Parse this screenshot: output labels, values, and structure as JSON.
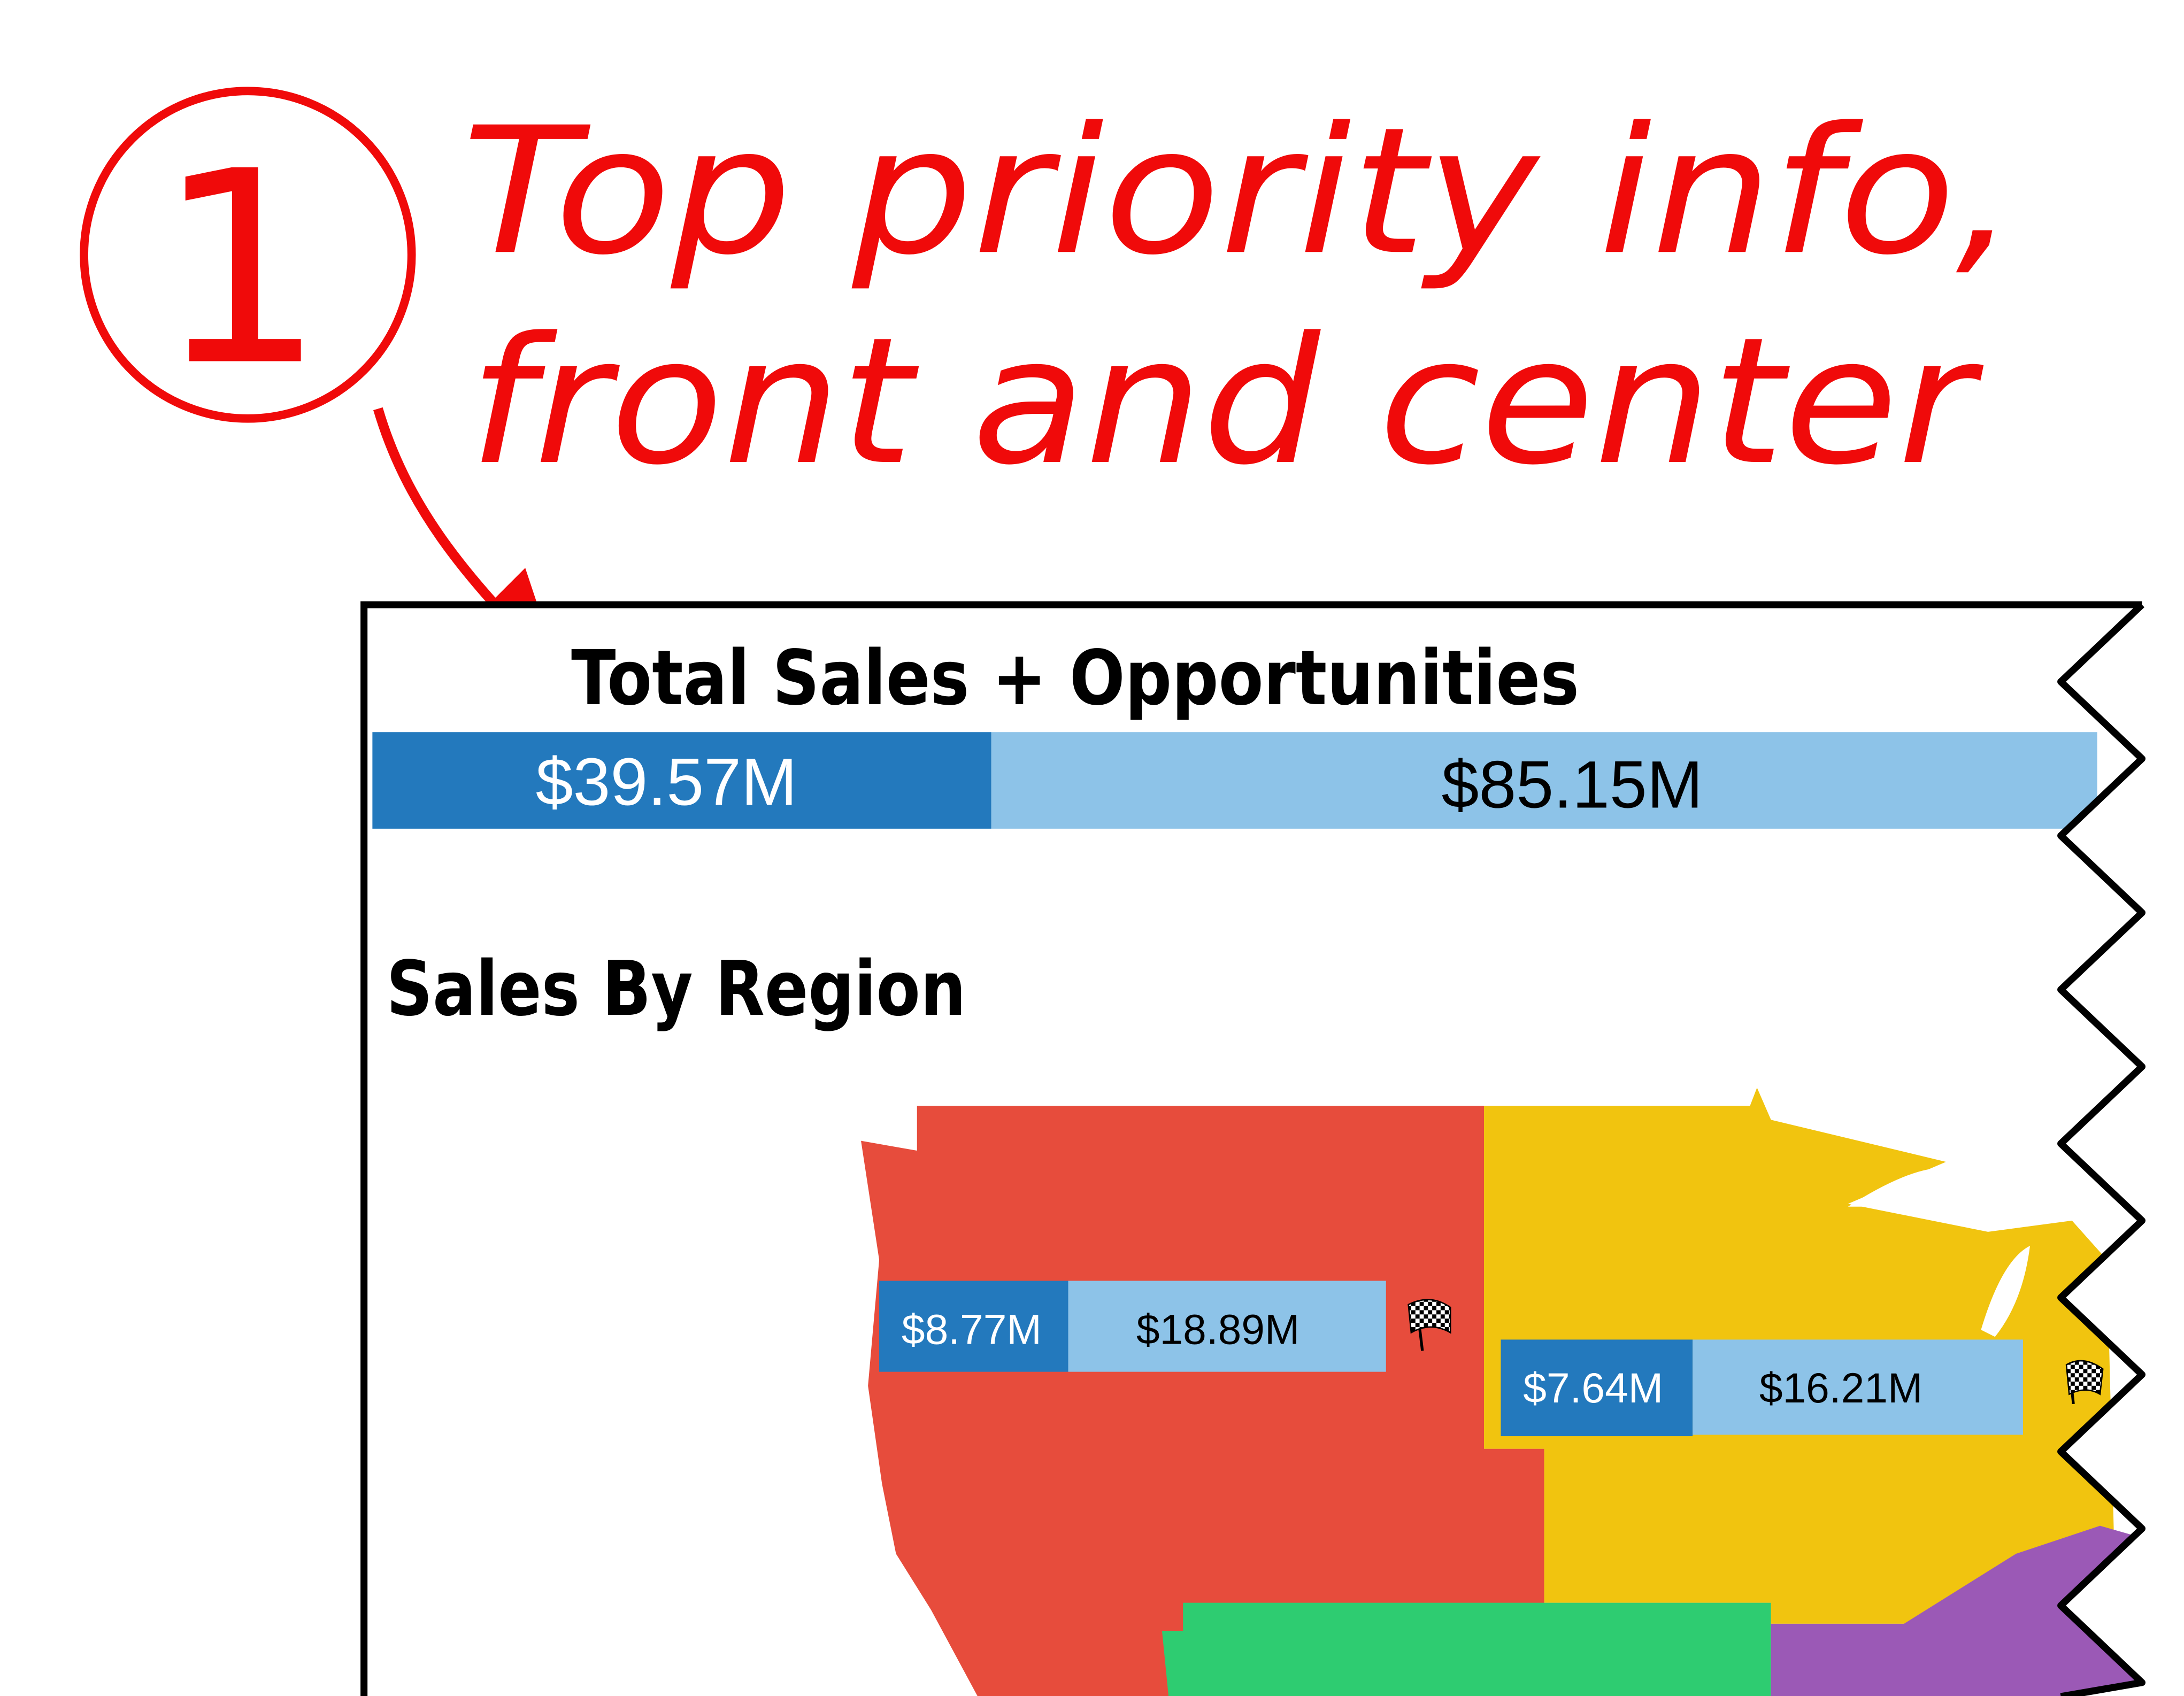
{
  "annotation": {
    "number": "1",
    "line1": "Top priority info,",
    "line2": "front and center",
    "color": "#f00a0a"
  },
  "dashboard": {
    "total": {
      "title": "Total Sales + Opportunities",
      "sales": "$39.57M",
      "opportunities": "$85.15M",
      "sales_color": "#2379bd",
      "opportunities_color": "#8dc3e8"
    },
    "region": {
      "title": "Sales By Region",
      "regions": [
        {
          "color": "#e74c3c",
          "sales": "$8.77M",
          "opportunities": "$18.89M",
          "icon": "checkered-flag-icon"
        },
        {
          "color": "#f1c40f",
          "sales": "$7.64M",
          "opportunities": "$16.21M",
          "icon": "checkered-flag-icon"
        },
        {
          "color": "#2ecc71"
        },
        {
          "color": "#9b59b6"
        }
      ]
    }
  }
}
